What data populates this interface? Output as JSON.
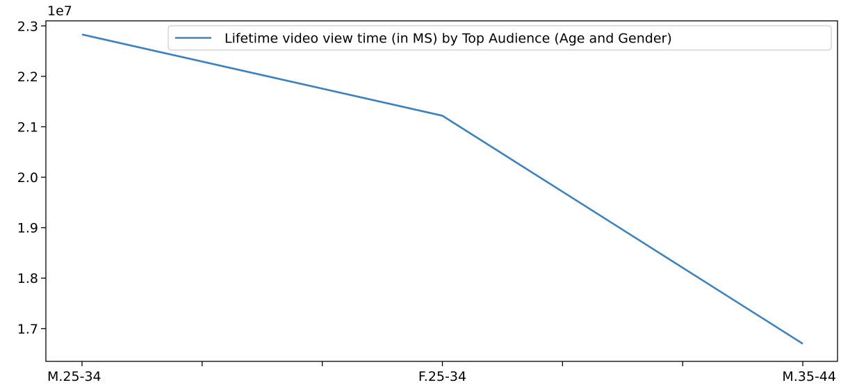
{
  "chart_data": {
    "type": "line",
    "categories": [
      "M.25-34",
      "F.25-34",
      "M.35-44"
    ],
    "x_minor_ticks": 7,
    "series": [
      {
        "name": "Lifetime video view time (in MS) by Top Audience (Age and Gender)",
        "values": [
          22830000,
          21220000,
          16700000
        ],
        "color": "#3b82c0"
      }
    ],
    "y_offset_label": "1e7",
    "y_scale": 10000000,
    "ylim": [
      1.635,
      2.31
    ],
    "yticks": [
      1.7,
      1.8,
      1.9,
      2.0,
      2.1,
      2.2,
      2.3
    ],
    "ytick_labels": [
      "1.7",
      "1.8",
      "1.9",
      "2.0",
      "2.1",
      "2.2",
      "2.3"
    ],
    "legend_position": "top-right",
    "grid": false
  }
}
